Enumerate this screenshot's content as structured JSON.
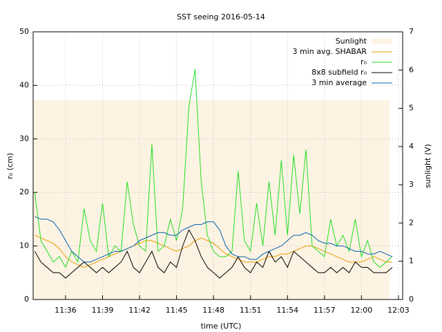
{
  "chart_data": {
    "type": "line",
    "title": "SST seeing 2016-05-14",
    "x_label": "time (UTC)",
    "y_label": "r₀ (cm)",
    "y2_label": "sunlight (V)",
    "xlim": [
      693.37,
      723.34
    ],
    "xticks": [
      {
        "value": 696,
        "label": "11:36"
      },
      {
        "value": 699,
        "label": "11:39"
      },
      {
        "value": 702,
        "label": "11:42"
      },
      {
        "value": 705,
        "label": "11:45"
      },
      {
        "value": 708,
        "label": "11:48"
      },
      {
        "value": 711,
        "label": "11:51"
      },
      {
        "value": 714,
        "label": "11:54"
      },
      {
        "value": 717,
        "label": "11:57"
      },
      {
        "value": 720,
        "label": "12:00"
      },
      {
        "value": 723,
        "label": "12:03"
      }
    ],
    "ylim": [
      0,
      50
    ],
    "yticks": [
      0,
      10,
      20,
      30,
      40,
      50
    ],
    "y2lim": [
      0,
      7
    ],
    "y2ticks": [
      0,
      1,
      2,
      3,
      4,
      5,
      6,
      7
    ],
    "grid": true,
    "legend": "top-right",
    "x": [
      693.5,
      694,
      694.5,
      695,
      695.5,
      696,
      696.5,
      697,
      697.5,
      698,
      698.5,
      699,
      699.5,
      700,
      700.5,
      701,
      701.5,
      702,
      702.5,
      703,
      703.5,
      704,
      704.5,
      705,
      705.5,
      706,
      706.5,
      707,
      707.5,
      708,
      708.5,
      709,
      709.5,
      710,
      710.5,
      711,
      711.5,
      712,
      712.5,
      713,
      713.5,
      714,
      714.5,
      715,
      715.5,
      716,
      716.5,
      717,
      717.5,
      718,
      718.5,
      719,
      719.5,
      720,
      720.5,
      721,
      721.5,
      722,
      722.5
    ],
    "series": [
      {
        "name": "Sunlight",
        "color": "#fdf3e3",
        "axis": "y2",
        "fill": true,
        "x": [
          693.37,
          722.3
        ],
        "values": [
          5.21,
          5.21
        ]
      },
      {
        "name": "3 min avg. SHABAR",
        "color": "#e69f00",
        "values": [
          12,
          11.5,
          11,
          10.5,
          9.5,
          8,
          7,
          6.5,
          6,
          6.5,
          7,
          7.5,
          8,
          8.5,
          9,
          9.5,
          10,
          10.5,
          11,
          11,
          10.5,
          10,
          9.5,
          9,
          9.5,
          10,
          11,
          11.5,
          11,
          10.5,
          9.5,
          8.5,
          8,
          7.5,
          7,
          7,
          7,
          7.5,
          8,
          8,
          8.5,
          8.5,
          9,
          9.5,
          10,
          10,
          9.5,
          9,
          8.5,
          8,
          7.5,
          7,
          7,
          7,
          7.5,
          8,
          7.5,
          7,
          7
        ]
      },
      {
        "name": "r₀",
        "color": "#22dd22",
        "values": [
          20,
          11,
          9,
          7,
          8,
          6,
          9,
          7,
          17,
          11,
          9,
          18,
          8,
          10,
          9,
          22,
          14,
          10,
          9,
          29,
          9,
          10,
          15,
          11,
          17,
          36,
          43,
          22,
          12,
          9,
          8,
          8,
          9,
          24,
          11,
          9,
          18,
          10,
          22,
          12,
          26,
          12,
          27,
          16,
          28,
          10,
          9,
          8,
          15,
          10,
          12,
          9,
          15,
          8,
          11,
          7,
          6,
          7,
          8
        ]
      },
      {
        "name": "8x8 subfield r₀",
        "color": "#000000",
        "values": [
          9,
          7,
          6,
          5,
          5,
          4,
          5,
          6,
          7,
          6,
          5,
          6,
          5,
          6,
          7,
          9,
          6,
          5,
          7,
          9,
          6,
          5,
          7,
          6,
          10,
          13,
          11,
          8,
          6,
          5,
          4,
          5,
          6,
          8,
          6,
          5,
          7,
          6,
          9,
          7,
          8,
          6,
          9,
          8,
          7,
          6,
          5,
          5,
          6,
          5,
          6,
          5,
          7,
          6,
          6,
          5,
          5,
          5,
          6
        ]
      },
      {
        "name": "3 min average",
        "color": "#0060ad",
        "values": [
          15.5,
          15,
          15,
          14.5,
          13,
          11,
          9,
          8,
          7,
          7,
          7.5,
          8,
          8.5,
          9,
          9,
          9.5,
          10,
          11,
          11.5,
          12,
          12.5,
          12.5,
          12,
          12,
          13,
          13.5,
          14,
          14,
          14.5,
          14.5,
          13,
          10,
          8.5,
          8,
          8,
          7.5,
          7.5,
          8.5,
          9,
          9.5,
          10,
          11,
          12,
          12,
          12.5,
          12,
          11,
          10.5,
          10.5,
          10,
          10,
          9.5,
          9,
          9,
          8.5,
          8.5,
          9,
          8.5,
          8
        ]
      }
    ]
  }
}
